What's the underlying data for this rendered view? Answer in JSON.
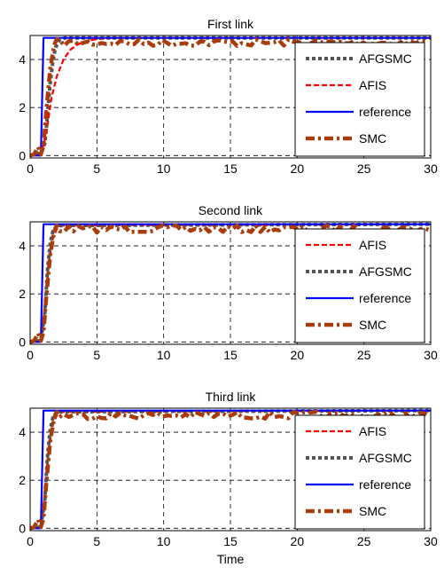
{
  "chart_data": [
    {
      "type": "line",
      "title": "First link",
      "xlabel": "",
      "ylabel": "",
      "xlim": [
        0,
        30
      ],
      "ylim": [
        -0.1,
        5
      ],
      "xticks": [
        "0",
        "5",
        "10",
        "15",
        "20",
        "25",
        "30"
      ],
      "yticks": [
        "0",
        "2",
        "4"
      ],
      "grid": true,
      "legend": "right",
      "series": [
        {
          "name": "AFGSMC",
          "color": "#555555",
          "style": "dotted",
          "x": [
            0,
            0.8,
            1.1,
            1.3,
            1.5,
            1.7,
            1.9,
            2.2,
            2.6,
            3,
            30
          ],
          "y": [
            0,
            0.1,
            0.5,
            1.7,
            3.0,
            3.9,
            4.5,
            4.8,
            4.9,
            4.9,
            4.9
          ]
        },
        {
          "name": "AFIS",
          "color": "#ff0000",
          "style": "dashed",
          "x": [
            0,
            0.8,
            1.2,
            1.6,
            2.0,
            2.5,
            3.0,
            3.5,
            4.0,
            5.0,
            6.0,
            30
          ],
          "y": [
            0,
            0.05,
            0.9,
            2.4,
            3.3,
            4.0,
            4.4,
            4.6,
            4.75,
            4.85,
            4.9,
            4.9
          ]
        },
        {
          "name": "reference",
          "color": "#0000ff",
          "style": "solid",
          "x": [
            0,
            0.8,
            1.0,
            30
          ],
          "y": [
            0,
            0,
            4.9,
            4.9
          ]
        },
        {
          "name": "SMC",
          "color": "#a83c0a",
          "style": "dashdot",
          "x": [
            0,
            0.3,
            0.6,
            0.8,
            1.0,
            1.2,
            1.5,
            1.8,
            2.0,
            30
          ],
          "y": [
            0,
            0.05,
            0.35,
            0.05,
            0.4,
            1.8,
            3.6,
            4.6,
            4.85,
            4.85
          ]
        }
      ]
    },
    {
      "type": "line",
      "title": "Second link",
      "xlabel": "",
      "ylabel": "",
      "xlim": [
        0,
        30
      ],
      "ylim": [
        -0.1,
        5
      ],
      "xticks": [
        "0",
        "5",
        "10",
        "15",
        "20",
        "25",
        "30"
      ],
      "yticks": [
        "0",
        "2",
        "4"
      ],
      "grid": true,
      "legend": "right",
      "series": [
        {
          "name": "AFIS",
          "color": "#ff0000",
          "style": "dashed",
          "x": [
            0,
            0.8,
            1.1,
            1.4,
            1.7,
            2.0,
            2.4,
            30
          ],
          "y": [
            0,
            0.05,
            1.4,
            3.3,
            4.3,
            4.7,
            4.85,
            4.9
          ]
        },
        {
          "name": "AFGSMC",
          "color": "#555555",
          "style": "dotted",
          "x": [
            0,
            0.8,
            1.1,
            1.3,
            1.5,
            1.7,
            2.0,
            30
          ],
          "y": [
            0,
            0.05,
            1.2,
            3.0,
            4.1,
            4.6,
            4.85,
            4.9
          ]
        },
        {
          "name": "reference",
          "color": "#0000ff",
          "style": "solid",
          "x": [
            0,
            0.8,
            1.0,
            30
          ],
          "y": [
            0,
            0,
            4.9,
            4.9
          ]
        },
        {
          "name": "SMC",
          "color": "#a83c0a",
          "style": "dashdot",
          "x": [
            0,
            0.3,
            0.6,
            0.8,
            1.0,
            1.2,
            1.5,
            1.8,
            2.0,
            30
          ],
          "y": [
            0,
            0.05,
            0.35,
            0.05,
            0.4,
            1.8,
            3.6,
            4.6,
            4.85,
            4.85
          ]
        }
      ]
    },
    {
      "type": "line",
      "title": "Third link",
      "xlabel": "Time",
      "ylabel": "",
      "xlim": [
        0,
        30
      ],
      "ylim": [
        -0.1,
        5
      ],
      "xticks": [
        "0",
        "5",
        "10",
        "15",
        "20",
        "25",
        "30"
      ],
      "yticks": [
        "0",
        "2",
        "4"
      ],
      "grid": true,
      "legend": "right",
      "series": [
        {
          "name": "AFIS",
          "color": "#ff0000",
          "style": "dashed",
          "x": [
            0,
            0.8,
            1.1,
            1.4,
            1.7,
            2.0,
            2.4,
            30
          ],
          "y": [
            0,
            0.05,
            1.4,
            3.3,
            4.3,
            4.7,
            4.85,
            4.9
          ]
        },
        {
          "name": "AFGSMC",
          "color": "#555555",
          "style": "dotted",
          "x": [
            0,
            0.8,
            1.1,
            1.3,
            1.5,
            1.7,
            2.0,
            30
          ],
          "y": [
            0,
            0.05,
            1.2,
            3.0,
            4.1,
            4.6,
            4.85,
            4.9
          ]
        },
        {
          "name": "reference",
          "color": "#0000ff",
          "style": "solid",
          "x": [
            0,
            0.8,
            1.0,
            30
          ],
          "y": [
            0,
            0,
            4.9,
            4.9
          ]
        },
        {
          "name": "SMC",
          "color": "#a83c0a",
          "style": "dashdot",
          "x": [
            0,
            0.3,
            0.6,
            0.8,
            1.0,
            1.2,
            1.5,
            1.8,
            2.0,
            30
          ],
          "y": [
            0,
            0.05,
            0.35,
            0.05,
            0.4,
            1.8,
            3.6,
            4.6,
            4.85,
            4.85
          ]
        }
      ]
    }
  ]
}
